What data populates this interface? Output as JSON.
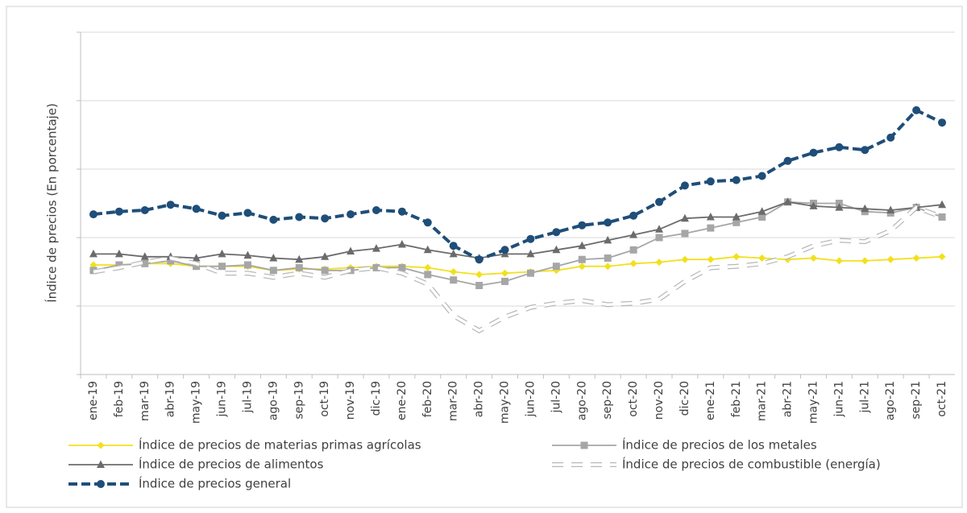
{
  "chart_data": {
    "type": "line",
    "y_label": "Índice de precios (En porcentaje)",
    "categories": [
      "ene-19",
      "feb-19",
      "mar-19",
      "abr-19",
      "may-19",
      "jun-19",
      "jul-19",
      "ago-19",
      "sep-19",
      "oct-19",
      "nov-19",
      "dic-19",
      "ene-20",
      "feb-20",
      "mar-20",
      "abr-20",
      "may-20",
      "jun-20",
      "jul-20",
      "ago-20",
      "sep-20",
      "oct-20",
      "nov-20",
      "dic-20",
      "ene-21",
      "feb-21",
      "mar-21",
      "abr-21",
      "may-21",
      "jun-21",
      "jul-21",
      "ago-21",
      "sep-21",
      "oct-21"
    ],
    "ylim": [
      0,
      250
    ],
    "yticks": [
      0,
      50,
      100,
      150,
      200,
      250
    ],
    "grid": true,
    "legend": "bottom",
    "series": [
      {
        "name": "Índice de precios de materias primas agrícolas",
        "color": "#f2e01e",
        "marker": "diamond",
        "dash": "solid",
        "values": [
          80,
          80,
          81,
          81,
          79,
          79,
          79,
          76,
          77,
          77,
          78,
          79,
          79,
          78,
          75,
          73,
          74,
          75,
          76,
          79,
          79,
          81,
          82,
          84,
          84,
          86,
          85,
          84,
          85,
          83,
          83,
          84,
          85,
          86
        ]
      },
      {
        "name": "Índice de precios de los metales",
        "color": "#a6a6a6",
        "marker": "square",
        "dash": "solid",
        "values": [
          76,
          80,
          81,
          83,
          79,
          79,
          80,
          76,
          78,
          76,
          76,
          78,
          78,
          73,
          69,
          65,
          68,
          74,
          79,
          84,
          85,
          91,
          100,
          103,
          107,
          111,
          115,
          126,
          125,
          125,
          119,
          118,
          122,
          115
        ]
      },
      {
        "name": "Índice de precios de alimentos",
        "color": "#6b6b6b",
        "marker": "triangle",
        "dash": "solid",
        "values": [
          88,
          88,
          86,
          86,
          85,
          88,
          87,
          85,
          84,
          86,
          90,
          92,
          95,
          91,
          88,
          85,
          88,
          88,
          91,
          94,
          98,
          102,
          106,
          114,
          115,
          115,
          119,
          126,
          123,
          122,
          121,
          120,
          122,
          124
        ]
      },
      {
        "name": "Índice de precios de combustible (energía)",
        "color": "#b8b8b8",
        "marker": "none",
        "dash": "hollow",
        "values": [
          75,
          78,
          82,
          85,
          81,
          74,
          74,
          71,
          74,
          71,
          76,
          78,
          74,
          66,
          43,
          32,
          42,
          49,
          52,
          54,
          51,
          52,
          55,
          68,
          78,
          79,
          81,
          86,
          94,
          98,
          97,
          105,
          122,
          115
        ]
      },
      {
        "name": "Índice de precios general",
        "color": "#1f4e79",
        "marker": "circle",
        "dash": "dashed",
        "values": [
          117,
          119,
          120,
          124,
          121,
          116,
          118,
          113,
          115,
          114,
          117,
          120,
          119,
          111,
          94,
          84,
          91,
          99,
          104,
          109,
          111,
          116,
          126,
          138,
          141,
          142,
          145,
          156,
          162,
          166,
          164,
          173,
          193,
          184
        ]
      }
    ]
  }
}
